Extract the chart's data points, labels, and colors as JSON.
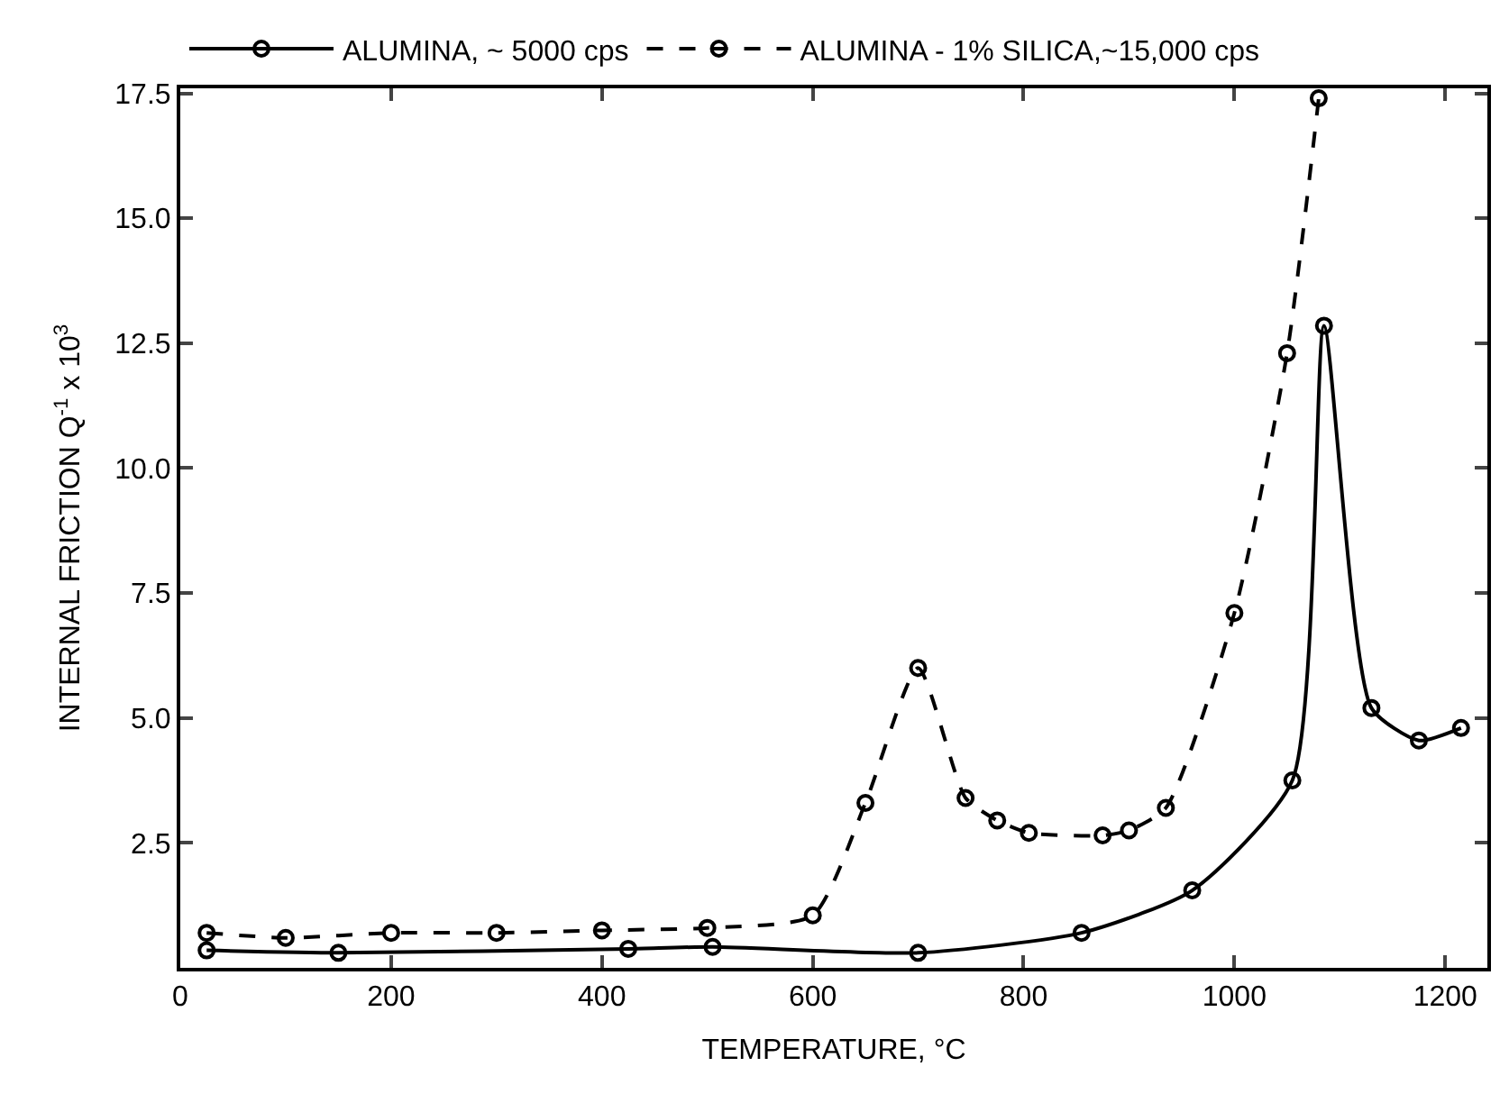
{
  "chart_data": {
    "type": "line",
    "xlabel": "TEMPERATURE, °C",
    "ylabel": "INTERNAL FRICTION Q$^{-1}$ x 10$^{3}$",
    "xlim": [
      0,
      1240
    ],
    "xticks": [
      0,
      200,
      400,
      600,
      800,
      1000,
      1200
    ],
    "ylim": [
      0,
      17.6
    ],
    "yticks": [
      2.5,
      {
        "value": 5,
        "label": "5.0"
      },
      7.5,
      {
        "value": 10,
        "label": "10.0"
      },
      12.5,
      {
        "value": 15,
        "label": "15.0"
      },
      {
        "value": 17.5,
        "label": "17.5"
      }
    ],
    "legend": "top left",
    "marker": "circle",
    "series": [
      {
        "name": "ALUMINA, ~ 5000 cps",
        "color": "#000000",
        "line_style": "solid",
        "x": [
          25,
          150,
          425,
          505,
          700,
          855,
          960,
          1055,
          1085,
          1130,
          1175,
          1215
        ],
        "values": [
          0.35,
          0.3,
          0.38,
          0.42,
          0.3,
          0.7,
          1.55,
          3.75,
          12.85,
          5.2,
          4.55,
          4.8
        ]
      },
      {
        "name": "ALUMINA - 1% SILICA,~15,000 cps",
        "color": "#000000",
        "line_style": "dashed",
        "x": [
          25,
          100,
          200,
          300,
          400,
          500,
          600,
          650,
          700,
          745,
          775,
          805,
          875,
          900,
          935,
          1000,
          1050,
          1080
        ],
        "values": [
          0.7,
          0.6,
          0.7,
          0.7,
          0.75,
          0.8,
          1.05,
          3.3,
          6.0,
          3.4,
          2.95,
          2.7,
          2.65,
          2.75,
          3.2,
          7.1,
          12.3,
          17.4
        ]
      }
    ]
  }
}
